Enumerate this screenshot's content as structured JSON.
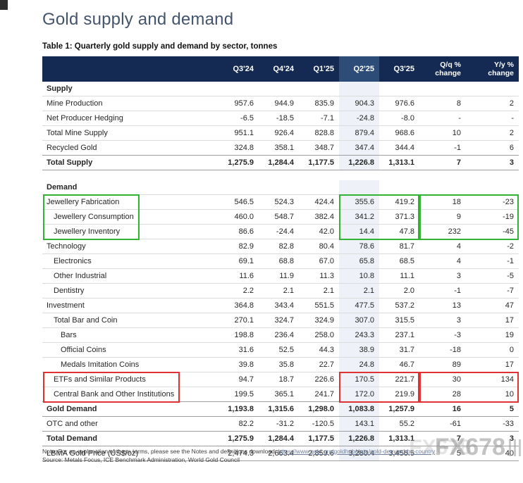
{
  "page": {
    "title": "Gold supply and demand",
    "table_caption": "Table 1: Quarterly gold supply and demand by sector, tonnes"
  },
  "colors": {
    "title": "#44546A",
    "header_bg": "#142A52",
    "header_hl": "#2E4C78",
    "tint": "#EEF1F7",
    "green": "#33B333",
    "red": "#E03232"
  },
  "table": {
    "columns": [
      "Q3'24",
      "Q4'24",
      "Q1'25",
      "Q2'25",
      "Q3'25",
      "Q/q %\nchange",
      "Y/y %\nchange"
    ],
    "rows": [
      {
        "label": "Supply",
        "type": "section"
      },
      {
        "label": "Mine Production",
        "indent": 0,
        "values": [
          "957.6",
          "944.9",
          "835.9",
          "904.3",
          "976.6",
          "8",
          "2"
        ]
      },
      {
        "label": "Net Producer Hedging",
        "indent": 0,
        "values": [
          "-6.5",
          "-18.5",
          "-7.1",
          "-24.8",
          "-8.0",
          "-",
          "-"
        ]
      },
      {
        "label": "Total Mine Supply",
        "indent": 0,
        "values": [
          "951.1",
          "926.4",
          "828.8",
          "879.4",
          "968.6",
          "10",
          "2"
        ]
      },
      {
        "label": "Recycled Gold",
        "indent": 0,
        "values": [
          "324.8",
          "358.1",
          "348.7",
          "347.4",
          "344.4",
          "-1",
          "6"
        ]
      },
      {
        "label": "Total Supply",
        "type": "total",
        "values": [
          "1,275.9",
          "1,284.4",
          "1,177.5",
          "1,226.8",
          "1,313.1",
          "7",
          "3"
        ]
      },
      {
        "type": "gap"
      },
      {
        "label": "Demand",
        "type": "section"
      },
      {
        "label": "Jewellery Fabrication",
        "indent": 0,
        "values": [
          "546.5",
          "524.3",
          "424.4",
          "355.6",
          "419.2",
          "18",
          "-23"
        ]
      },
      {
        "label": "Jewellery Consumption",
        "indent": 1,
        "values": [
          "460.0",
          "548.7",
          "382.4",
          "341.2",
          "371.3",
          "9",
          "-19"
        ]
      },
      {
        "label": "Jewellery Inventory",
        "indent": 1,
        "values": [
          "86.6",
          "-24.4",
          "42.0",
          "14.4",
          "47.8",
          "232",
          "-45"
        ]
      },
      {
        "label": "Technology",
        "indent": 0,
        "values": [
          "82.9",
          "82.8",
          "80.4",
          "78.6",
          "81.7",
          "4",
          "-2"
        ]
      },
      {
        "label": "Electronics",
        "indent": 1,
        "values": [
          "69.1",
          "68.8",
          "67.0",
          "65.8",
          "68.5",
          "4",
          "-1"
        ]
      },
      {
        "label": "Other Industrial",
        "indent": 1,
        "values": [
          "11.6",
          "11.9",
          "11.3",
          "10.8",
          "11.1",
          "3",
          "-5"
        ]
      },
      {
        "label": "Dentistry",
        "indent": 1,
        "values": [
          "2.2",
          "2.1",
          "2.1",
          "2.1",
          "2.0",
          "-1",
          "-7"
        ]
      },
      {
        "label": "Investment",
        "indent": 0,
        "values": [
          "364.8",
          "343.4",
          "551.5",
          "477.5",
          "537.2",
          "13",
          "47"
        ]
      },
      {
        "label": "Total Bar and Coin",
        "indent": 1,
        "values": [
          "270.1",
          "324.7",
          "324.9",
          "307.0",
          "315.5",
          "3",
          "17"
        ]
      },
      {
        "label": "Bars",
        "indent": 2,
        "values": [
          "198.8",
          "236.4",
          "258.0",
          "243.3",
          "237.1",
          "-3",
          "19"
        ]
      },
      {
        "label": "Official Coins",
        "indent": 2,
        "values": [
          "31.6",
          "52.5",
          "44.3",
          "38.9",
          "31.7",
          "-18",
          "0"
        ]
      },
      {
        "label": "Medals Imitation Coins",
        "indent": 2,
        "values": [
          "39.8",
          "35.8",
          "22.7",
          "24.8",
          "46.7",
          "89",
          "17"
        ]
      },
      {
        "label": "ETFs and Similar Products",
        "indent": 1,
        "values": [
          "94.7",
          "18.7",
          "226.6",
          "170.5",
          "221.7",
          "30",
          "134"
        ]
      },
      {
        "label": "Central Bank and Other Institutions",
        "indent": 1,
        "values": [
          "199.5",
          "365.1",
          "241.7",
          "172.0",
          "219.9",
          "28",
          "10"
        ]
      },
      {
        "label": "Gold Demand",
        "type": "total",
        "values": [
          "1,193.8",
          "1,315.6",
          "1,298.0",
          "1,083.8",
          "1,257.9",
          "16",
          "5"
        ]
      },
      {
        "label": "OTC and other",
        "indent": 0,
        "values": [
          "82.2",
          "-31.2",
          "-120.5",
          "143.1",
          "55.2",
          "-61",
          "-33"
        ]
      },
      {
        "label": "Total Demand",
        "type": "total",
        "values": [
          "1,275.9",
          "1,284.4",
          "1,177.5",
          "1,226.8",
          "1,313.1",
          "7",
          "3"
        ]
      },
      {
        "label": "LBMA Gold Price (US$/oz)",
        "indent": 0,
        "values": [
          "2,474.3",
          "2,663.4",
          "2,859.6",
          "3,280.4",
          "3,456.5",
          "5",
          "40"
        ]
      }
    ],
    "annotations": [
      {
        "color": "green",
        "rows": [
          8,
          10
        ],
        "target": "labels"
      },
      {
        "color": "green",
        "rows": [
          8,
          10
        ],
        "target": "q2q3"
      },
      {
        "color": "green",
        "rows": [
          8,
          10
        ],
        "target": "changes"
      },
      {
        "color": "red",
        "rows": [
          20,
          21
        ],
        "target": "labels"
      },
      {
        "color": "red",
        "rows": [
          20,
          21
        ],
        "target": "q2q3"
      },
      {
        "color": "red",
        "rows": [
          20,
          21
        ],
        "target": "changes"
      }
    ]
  },
  "notes": {
    "note_prefix": "Note: For an explanation of these terms, please see the Notes and definitions download: ",
    "note_link": "https://www.gold.org/goldhub/data/gold-demand-by-country",
    "source": "Source: Metals Focus, ICE Benchmark Administration, World Gold Council"
  },
  "watermark": {
    "text": "FX678"
  }
}
